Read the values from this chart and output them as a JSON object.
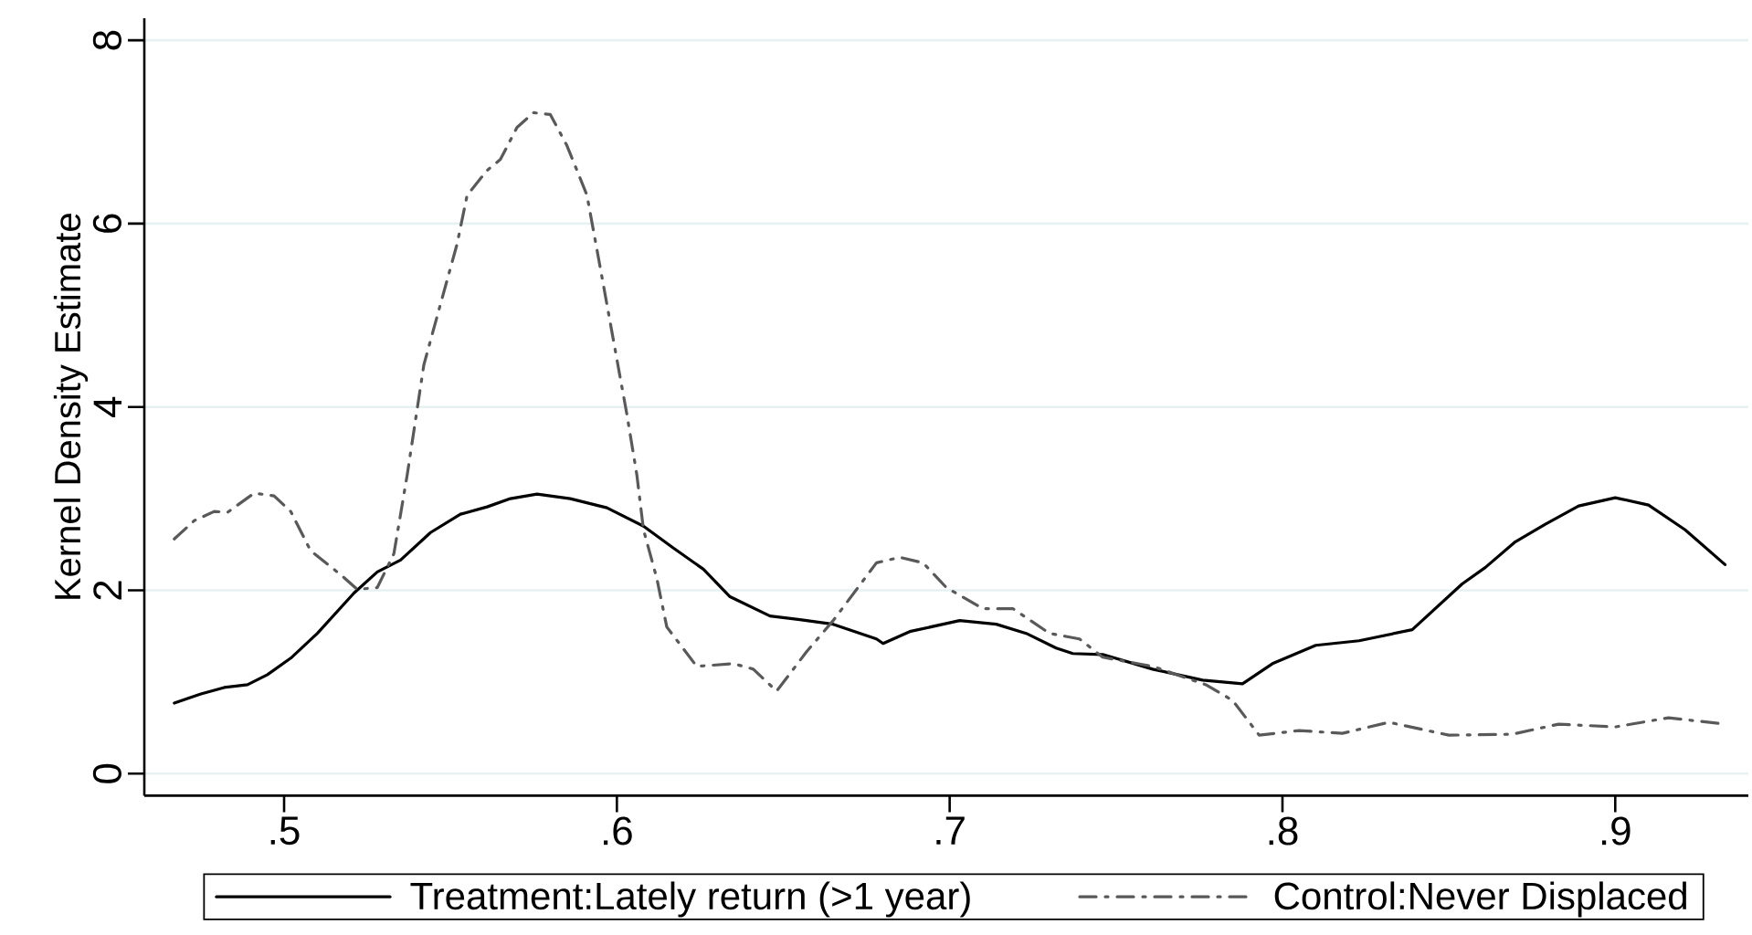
{
  "chart_data": {
    "type": "line",
    "ylabel": "Kernel Density Estimate",
    "xlim": [
      0.458,
      0.94
    ],
    "ylim": [
      -0.24,
      8.24
    ],
    "xticks": [
      {
        "value": 0.5,
        "label": ".5"
      },
      {
        "value": 0.6,
        "label": ".6"
      },
      {
        "value": 0.7,
        "label": ".7"
      },
      {
        "value": 0.8,
        "label": ".8"
      },
      {
        "value": 0.9,
        "label": ".9"
      }
    ],
    "yticks": [
      0,
      2,
      4,
      6,
      8
    ],
    "grid": "y",
    "legend": "bottom",
    "series": [
      {
        "name": "Treatment:Lately return (>1 year)",
        "color": "#000000",
        "line_style": "solid",
        "x": [
          0.467,
          0.475,
          0.482,
          0.489,
          0.495,
          0.502,
          0.51,
          0.521,
          0.528,
          0.535,
          0.544,
          0.553,
          0.561,
          0.568,
          0.576,
          0.586,
          0.597,
          0.608,
          0.617,
          0.626,
          0.634,
          0.646,
          0.655,
          0.665,
          0.678,
          0.68,
          0.688,
          0.703,
          0.714,
          0.723,
          0.732,
          0.737,
          0.746,
          0.761,
          0.776,
          0.788,
          0.797,
          0.81,
          0.823,
          0.839,
          0.854,
          0.861,
          0.87,
          0.879,
          0.889,
          0.9,
          0.91,
          0.921,
          0.933
        ],
        "values": [
          0.77,
          0.87,
          0.94,
          0.97,
          1.08,
          1.26,
          1.53,
          1.97,
          2.2,
          2.33,
          2.63,
          2.83,
          2.91,
          3.0,
          3.05,
          3.0,
          2.9,
          2.7,
          2.46,
          2.23,
          1.93,
          1.72,
          1.68,
          1.63,
          1.47,
          1.42,
          1.55,
          1.67,
          1.63,
          1.53,
          1.37,
          1.31,
          1.3,
          1.14,
          1.02,
          0.98,
          1.2,
          1.4,
          1.45,
          1.57,
          2.07,
          2.25,
          2.53,
          2.72,
          2.92,
          3.01,
          2.93,
          2.66,
          2.28
        ]
      },
      {
        "name": "Control:Never Displaced",
        "color": "#595959",
        "line_style": "dashdot",
        "x": [
          0.467,
          0.473,
          0.479,
          0.483,
          0.491,
          0.497,
          0.502,
          0.508,
          0.517,
          0.522,
          0.528,
          0.533,
          0.537,
          0.542,
          0.546,
          0.552,
          0.555,
          0.561,
          0.565,
          0.57,
          0.575,
          0.58,
          0.585,
          0.591,
          0.595,
          0.599,
          0.603,
          0.606,
          0.608,
          0.612,
          0.615,
          0.624,
          0.635,
          0.641,
          0.648,
          0.657,
          0.665,
          0.678,
          0.685,
          0.692,
          0.699,
          0.71,
          0.719,
          0.73,
          0.739,
          0.746,
          0.761,
          0.777,
          0.785,
          0.793,
          0.805,
          0.818,
          0.832,
          0.85,
          0.869,
          0.883,
          0.9,
          0.916,
          0.933
        ],
        "values": [
          2.56,
          2.76,
          2.86,
          2.85,
          3.06,
          3.03,
          2.86,
          2.43,
          2.17,
          2.01,
          2.03,
          2.4,
          3.26,
          4.46,
          4.99,
          5.78,
          6.31,
          6.58,
          6.7,
          7.05,
          7.21,
          7.19,
          6.85,
          6.31,
          5.52,
          4.72,
          3.92,
          3.26,
          2.66,
          2.13,
          1.6,
          1.17,
          1.2,
          1.14,
          0.9,
          1.33,
          1.67,
          2.3,
          2.36,
          2.3,
          2.03,
          1.8,
          1.8,
          1.53,
          1.47,
          1.27,
          1.17,
          0.97,
          0.8,
          0.42,
          0.47,
          0.44,
          0.56,
          0.42,
          0.43,
          0.54,
          0.51,
          0.61,
          0.54
        ]
      }
    ]
  }
}
